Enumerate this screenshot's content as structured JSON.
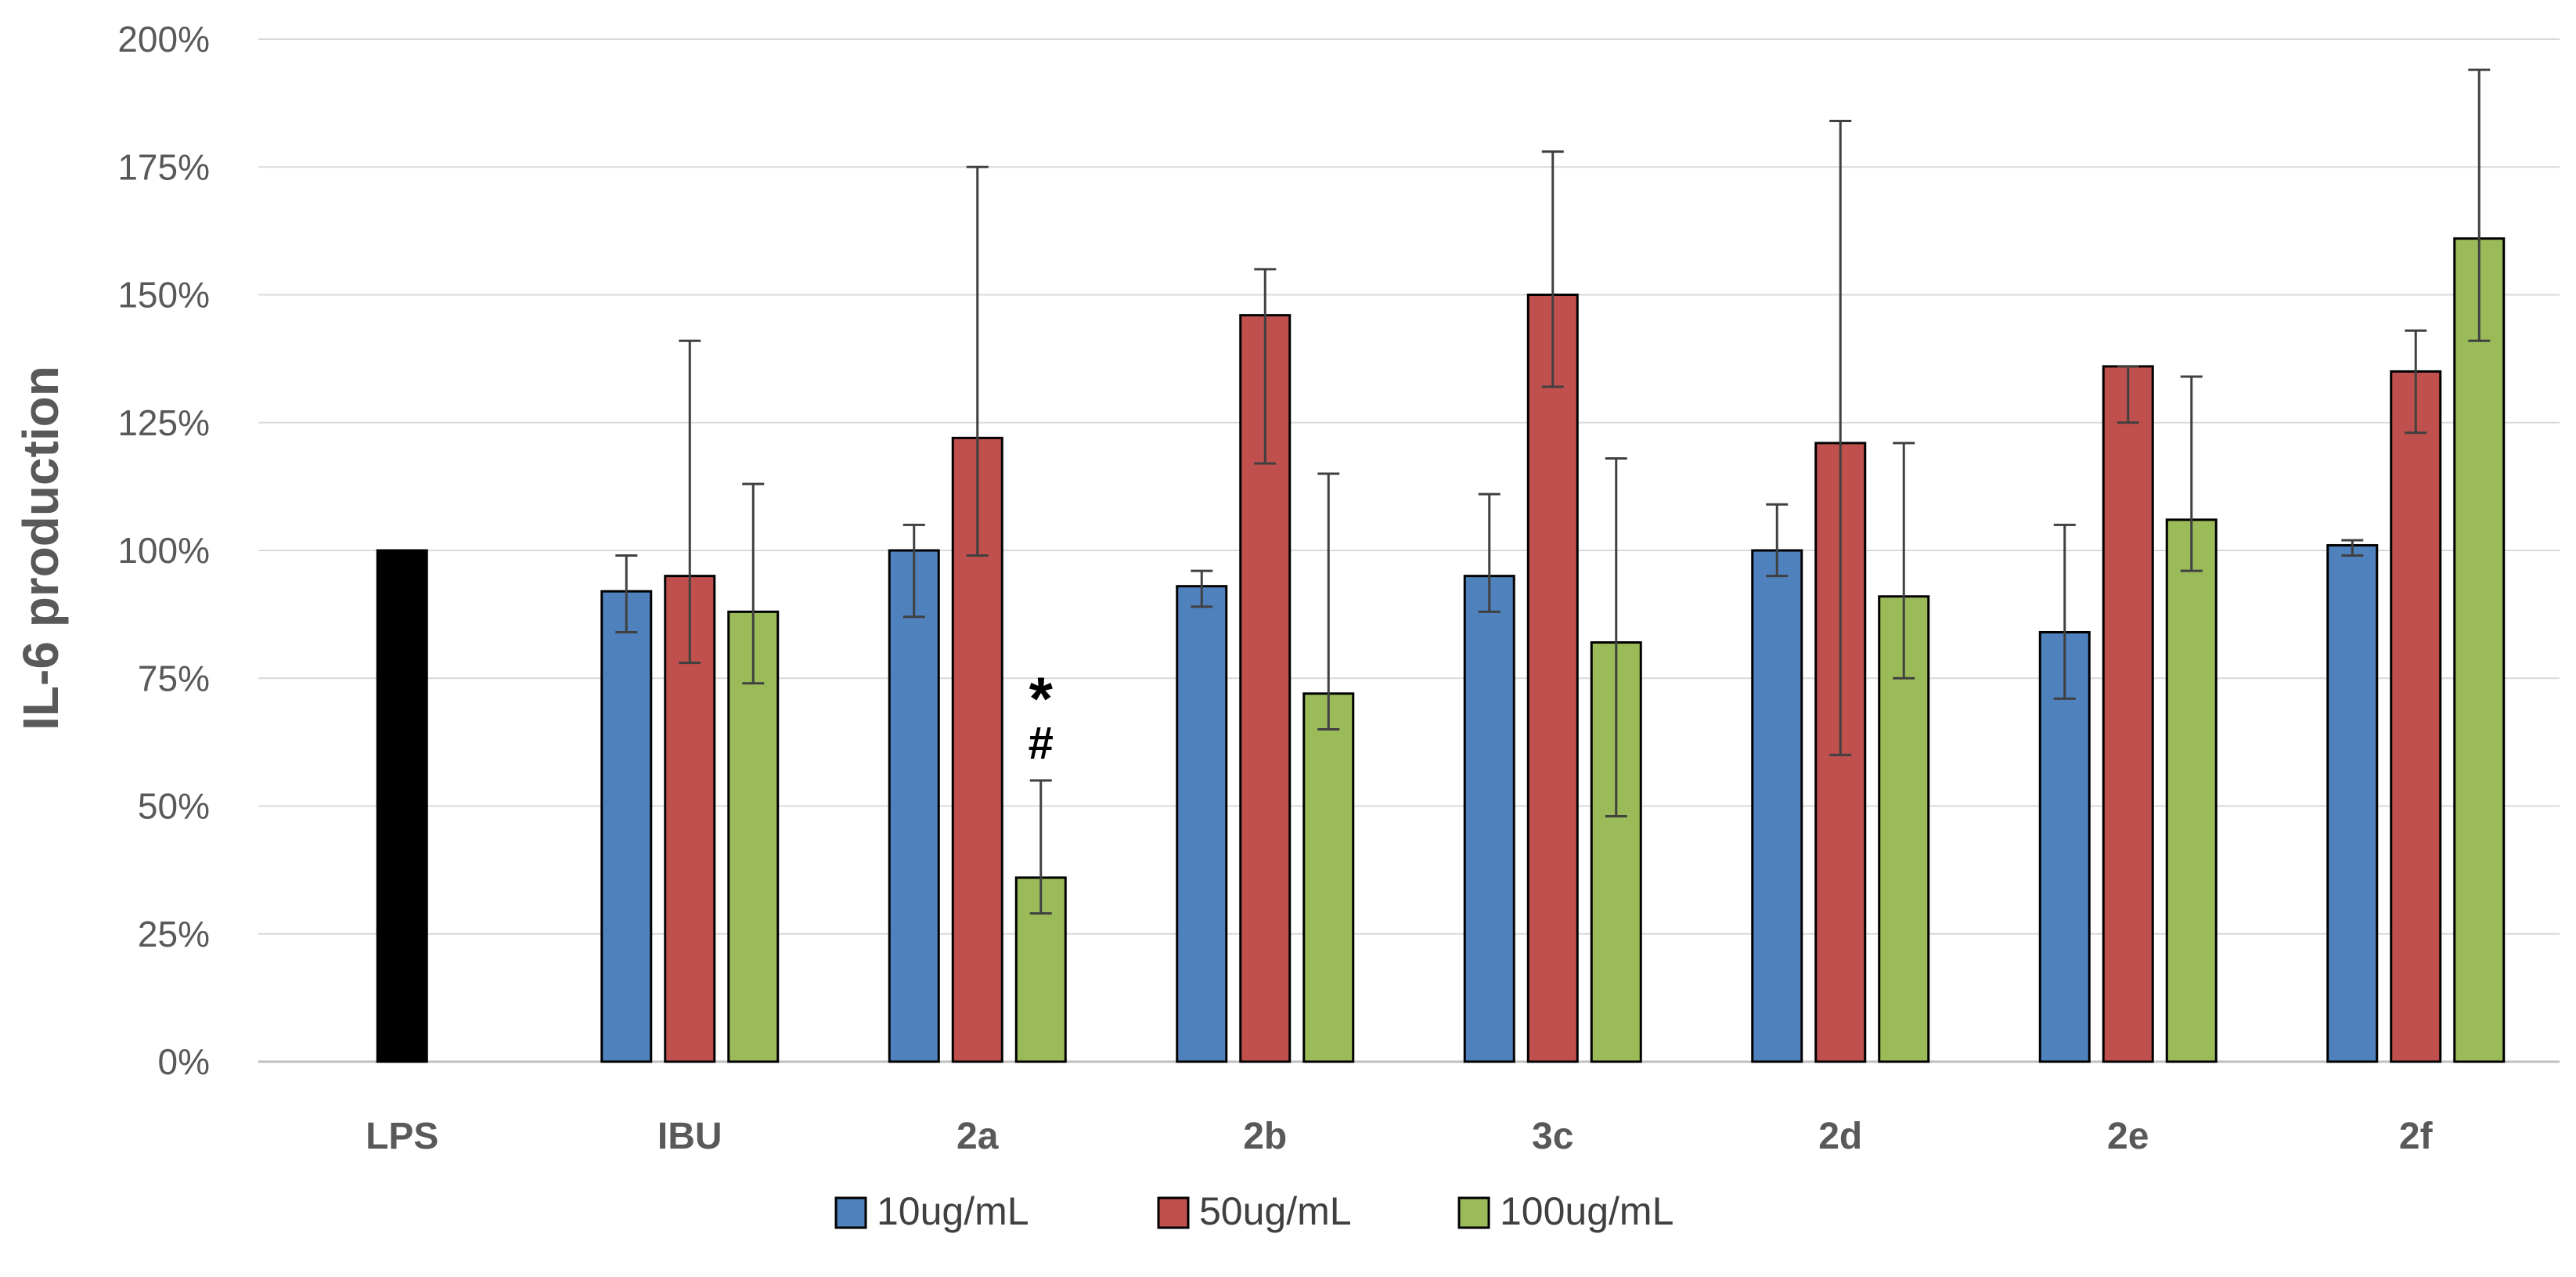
{
  "chart_data": {
    "type": "bar",
    "title": "",
    "xlabel": "",
    "ylabel": "IL-6 production",
    "ylim": [
      0,
      200
    ],
    "y_unit": "%",
    "grid": true,
    "legend_position": "bottom",
    "y_ticks": [
      "0%",
      "25%",
      "50%",
      "75%",
      "100%",
      "125%",
      "150%",
      "175%",
      "200%"
    ],
    "categories": [
      "LPS",
      "IBU",
      "2a",
      "2b",
      "3c",
      "2d",
      "2e",
      "2f"
    ],
    "control": {
      "category": "LPS",
      "value": 100,
      "color": "#000000"
    },
    "series": [
      {
        "name": "10ug/mL",
        "color": "#4F81BD",
        "values": [
          null,
          92,
          100,
          93,
          95,
          100,
          84,
          101
        ],
        "error_low": [
          null,
          84,
          87,
          89,
          88,
          95,
          71,
          99
        ],
        "error_high": [
          null,
          99,
          105,
          96,
          111,
          109,
          105,
          102
        ]
      },
      {
        "name": "50ug/mL",
        "color": "#C0504D",
        "values": [
          null,
          95,
          122,
          146,
          150,
          121,
          136,
          135
        ],
        "error_low": [
          null,
          78,
          99,
          117,
          132,
          60,
          125,
          123
        ],
        "error_high": [
          null,
          141,
          175,
          155,
          178,
          184,
          136,
          143
        ]
      },
      {
        "name": "100ug/mL",
        "color": "#9BBB59",
        "values": [
          null,
          88,
          36,
          72,
          82,
          91,
          106,
          161
        ],
        "error_low": [
          null,
          74,
          29,
          65,
          48,
          75,
          96,
          141
        ],
        "error_high": [
          null,
          113,
          55,
          115,
          118,
          121,
          134,
          194
        ]
      }
    ],
    "annotations": [
      {
        "category": "2a",
        "series": "100ug/mL",
        "symbols": [
          "*",
          "#"
        ]
      }
    ]
  }
}
